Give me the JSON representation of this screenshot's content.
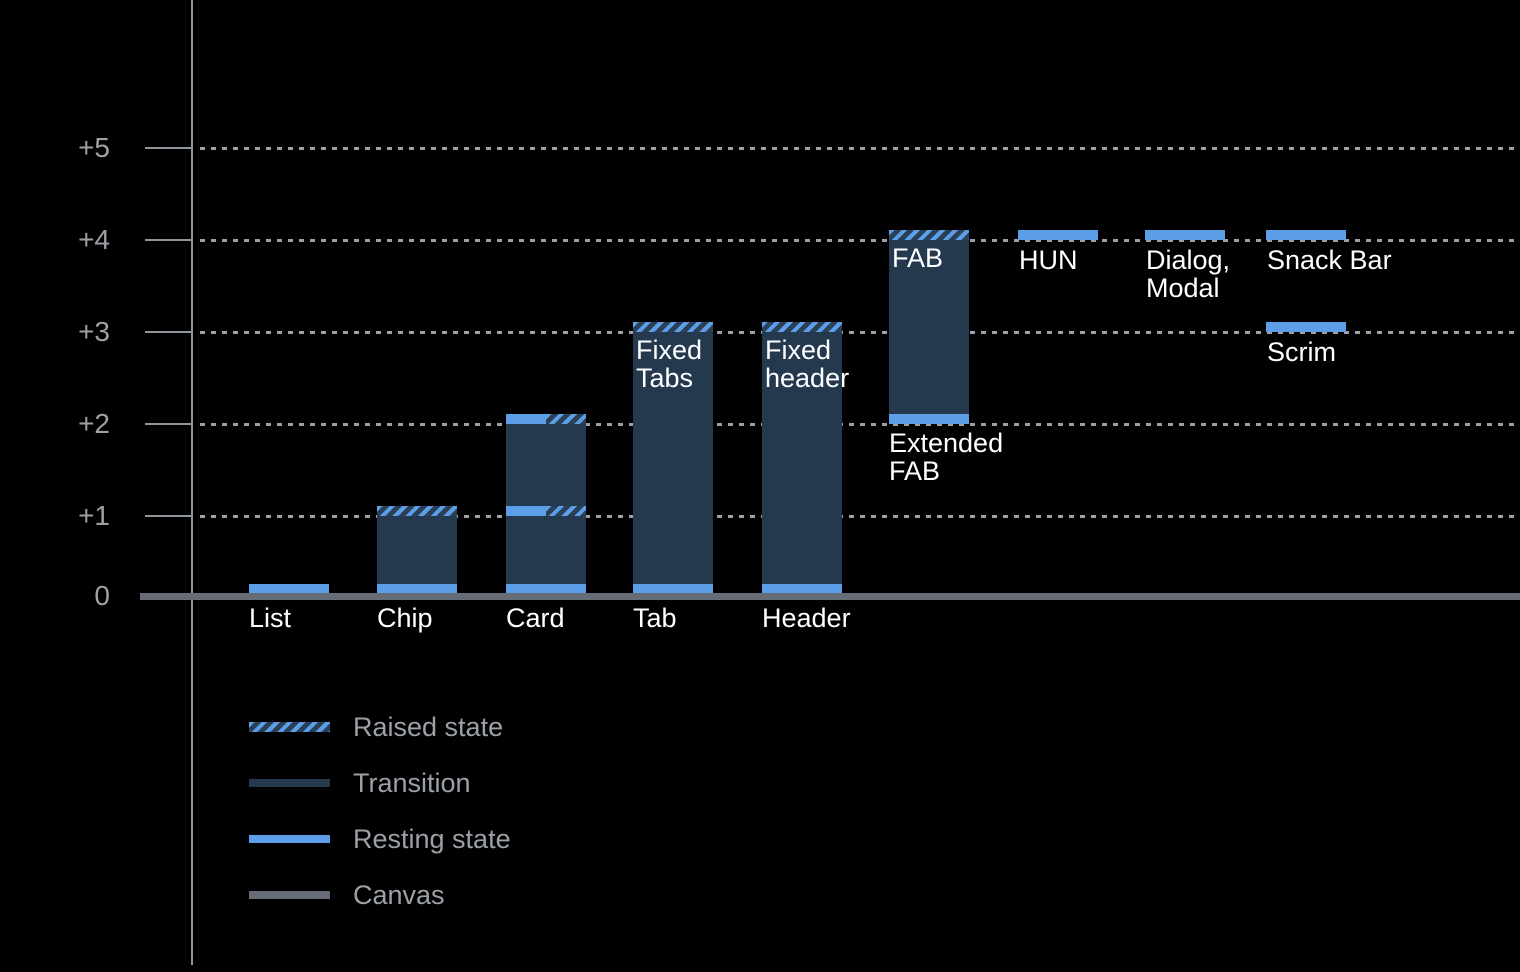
{
  "chart_data": {
    "type": "bar",
    "variant": "material-elevation-diagram",
    "title": "",
    "xlabel": "",
    "ylabel": "",
    "ylim": [
      0,
      5.5
    ],
    "grid": "dotted-horizontal",
    "legend_position": "bottom-left",
    "yticks": [
      {
        "label": "+5",
        "level": 5
      },
      {
        "label": "+4",
        "level": 4
      },
      {
        "label": "+3",
        "level": 3
      },
      {
        "label": "+2",
        "level": 2
      },
      {
        "label": "+1",
        "level": 1
      },
      {
        "label": "0",
        "level": 0
      }
    ],
    "components": [
      {
        "name": "List",
        "column": 0,
        "segments": [
          {
            "kind": "resting",
            "at": 0
          }
        ],
        "labels": [
          {
            "text": "List",
            "pos": "axis"
          }
        ]
      },
      {
        "name": "Chip",
        "column": 1,
        "segments": [
          {
            "kind": "resting",
            "at": 0
          },
          {
            "kind": "transition",
            "from": 0,
            "to": 1
          },
          {
            "kind": "raised",
            "at": 1
          }
        ],
        "labels": [
          {
            "text": "Chip",
            "pos": "axis"
          }
        ]
      },
      {
        "name": "Card",
        "column": 2,
        "segments": [
          {
            "kind": "resting",
            "at": 0
          },
          {
            "kind": "transition",
            "from": 0,
            "to": 1
          },
          {
            "kind": "resting-raised",
            "at": 1
          },
          {
            "kind": "transition",
            "from": 1,
            "to": 2
          },
          {
            "kind": "resting-raised",
            "at": 2
          }
        ],
        "labels": [
          {
            "text": "Card",
            "pos": "axis"
          }
        ]
      },
      {
        "name": "Tab",
        "column": 3,
        "segments": [
          {
            "kind": "resting",
            "at": 0
          },
          {
            "kind": "transition",
            "from": 0,
            "to": 3
          },
          {
            "kind": "raised",
            "at": 3
          }
        ],
        "labels": [
          {
            "text": "Tab",
            "pos": "axis"
          },
          {
            "text": "Fixed\nTabs",
            "pos": "inside-top",
            "at": 3
          }
        ]
      },
      {
        "name": "Header",
        "column": 4,
        "segments": [
          {
            "kind": "resting",
            "at": 0
          },
          {
            "kind": "transition",
            "from": 0,
            "to": 3
          },
          {
            "kind": "raised",
            "at": 3
          }
        ],
        "labels": [
          {
            "text": "Header",
            "pos": "axis"
          },
          {
            "text": "Fixed\nheader",
            "pos": "inside-top",
            "at": 3
          }
        ]
      },
      {
        "name": "FAB",
        "column": 5,
        "segments": [
          {
            "kind": "resting",
            "at": 2
          },
          {
            "kind": "transition",
            "from": 2,
            "to": 4
          },
          {
            "kind": "raised",
            "at": 4
          }
        ],
        "labels": [
          {
            "text": "FAB",
            "pos": "inside-top",
            "at": 4
          },
          {
            "text": "Extended\nFAB",
            "pos": "below-bar",
            "at": 2
          }
        ]
      },
      {
        "name": "HUN",
        "column": 6,
        "segments": [
          {
            "kind": "resting",
            "at": 4
          }
        ],
        "labels": [
          {
            "text": "HUN",
            "pos": "below-band",
            "at": 4
          }
        ]
      },
      {
        "name": "Dialog, Modal",
        "column": 7,
        "segments": [
          {
            "kind": "resting",
            "at": 4
          }
        ],
        "labels": [
          {
            "text": "Dialog,\nModal",
            "pos": "below-band",
            "at": 4
          }
        ]
      },
      {
        "name": "Snack Bar",
        "column": 8,
        "segments": [
          {
            "kind": "resting",
            "at": 4
          }
        ],
        "labels": [
          {
            "text": "Snack Bar",
            "pos": "below-band",
            "at": 4
          }
        ]
      },
      {
        "name": "Scrim",
        "column": 8,
        "segments": [
          {
            "kind": "resting",
            "at": 3
          }
        ],
        "labels": [
          {
            "text": "Scrim",
            "pos": "below-band",
            "at": 3
          }
        ]
      }
    ],
    "legend": [
      {
        "label": "Raised state",
        "style": "raised"
      },
      {
        "label": "Transition",
        "style": "transition"
      },
      {
        "label": "Resting state",
        "style": "resting"
      },
      {
        "label": "Canvas",
        "style": "canvas"
      }
    ],
    "colors": {
      "background": "#000000",
      "resting": "#5C9EE8",
      "transition": "#24384E",
      "hatch_light": "#5C9EE8",
      "hatch_dark": "#2A4056",
      "canvas_line": "#656C75",
      "axis": "#8F959C",
      "gridline": "#9BA0A6",
      "tick_label": "#9BA1A6",
      "legend_text": "#9BA1A6",
      "bar_label": "#FFFFFF"
    }
  }
}
